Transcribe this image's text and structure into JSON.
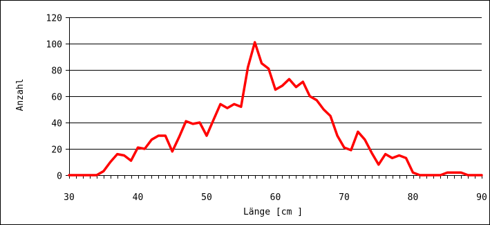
{
  "chart_data": {
    "type": "line",
    "xlabel": "Länge [cm ]",
    "ylabel": "Anzahl",
    "xlim": [
      30,
      90
    ],
    "ylim": [
      0,
      120
    ],
    "x_ticks": [
      30,
      40,
      50,
      60,
      70,
      80,
      90
    ],
    "y_ticks": [
      0,
      20,
      40,
      60,
      80,
      100,
      120
    ],
    "grid": "horizontal",
    "legend": "none",
    "series": [
      {
        "color": "#ff0000",
        "x": [
          30,
          31,
          32,
          33,
          34,
          35,
          36,
          37,
          38,
          39,
          40,
          41,
          42,
          43,
          44,
          45,
          46,
          47,
          48,
          49,
          50,
          51,
          52,
          53,
          54,
          55,
          56,
          57,
          58,
          59,
          60,
          61,
          62,
          63,
          64,
          65,
          66,
          67,
          68,
          69,
          70,
          71,
          72,
          73,
          74,
          75,
          76,
          77,
          78,
          79,
          80,
          81,
          82,
          83,
          84,
          85,
          86,
          87,
          88,
          89,
          90
        ],
        "values": [
          0,
          0,
          0,
          0,
          0,
          3,
          10,
          16,
          15,
          11,
          21,
          20,
          27,
          30,
          30,
          18,
          29,
          41,
          39,
          40,
          30,
          42,
          54,
          51,
          54,
          52,
          82,
          101,
          85,
          81,
          65,
          68,
          73,
          67,
          71,
          60,
          57,
          50,
          45,
          30,
          21,
          19,
          33,
          27,
          17,
          8,
          16,
          13,
          15,
          13,
          2,
          0,
          0,
          0,
          0,
          2,
          2,
          2,
          0,
          0,
          0
        ]
      }
    ]
  }
}
